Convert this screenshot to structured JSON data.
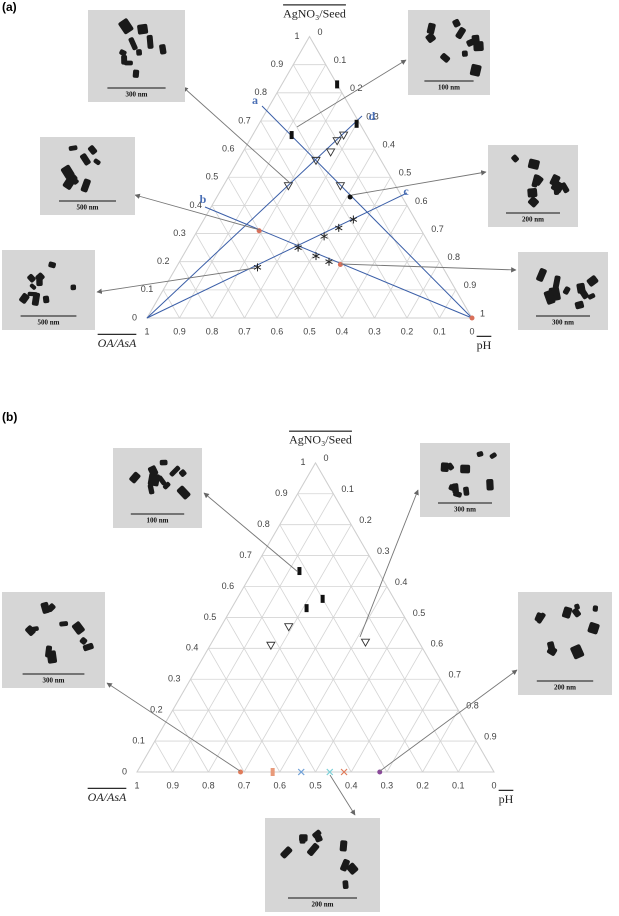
{
  "chart_data": [
    {
      "type": "ternary",
      "panel_label": "(a)",
      "components": [
        {
          "label": "AgNO₃/Seed",
          "ticks": [
            0,
            0.1,
            0.2,
            0.3,
            0.4,
            0.5,
            0.6,
            0.7,
            0.8,
            0.9,
            1
          ]
        },
        {
          "label": "OA/AsA",
          "ticks": [
            0,
            0.1,
            0.2,
            0.3,
            0.4,
            0.5,
            0.6,
            0.7,
            0.8,
            0.9,
            1
          ]
        },
        {
          "label": "pH",
          "ticks": [
            0,
            0.1,
            0.2,
            0.3,
            0.4,
            0.5,
            0.6,
            0.7,
            0.8,
            0.9,
            1
          ]
        }
      ],
      "series": [
        {
          "marker": "rect",
          "color": "#111111",
          "top": [
            0.83,
            0.65,
            0.69
          ],
          "right": [
            0.17,
            0.12,
            0.3
          ]
        },
        {
          "marker": "triangle-down",
          "color": "#333333",
          "top": [
            0.65,
            0.63,
            0.59,
            0.56,
            0.47,
            0.47
          ],
          "right": [
            0.28,
            0.27,
            0.27,
            0.24,
            0.2,
            0.36
          ]
        },
        {
          "marker": "star",
          "color": "#222222",
          "top": [
            0.18,
            0.25,
            0.29,
            0.32,
            0.35,
            0.22,
            0.2
          ],
          "right": [
            0.25,
            0.34,
            0.4,
            0.43,
            0.46,
            0.41,
            0.46
          ]
        },
        {
          "marker": "circle",
          "color": "#d9705a",
          "top": [
            0.31,
            0.19,
            0
          ],
          "right": [
            0.19,
            0.5,
            1
          ]
        },
        {
          "marker": "circle",
          "color": "#111111",
          "top": [
            0.43
          ],
          "right": [
            0.41
          ]
        }
      ],
      "line_labels": [
        "a",
        "b",
        "c",
        "d"
      ],
      "images": [
        {
          "scale": "300 nm"
        },
        {
          "scale": "100 nm"
        },
        {
          "scale": "500 nm"
        },
        {
          "scale": "200 nm"
        },
        {
          "scale": "500 nm"
        },
        {
          "scale": "300 nm"
        }
      ]
    },
    {
      "type": "ternary",
      "panel_label": "(b)",
      "components": [
        {
          "label": "AgNO₃/Seed",
          "ticks": [
            0,
            0.1,
            0.2,
            0.3,
            0.4,
            0.5,
            0.6,
            0.7,
            0.8,
            0.9,
            1
          ]
        },
        {
          "label": "OA/AsA",
          "ticks": [
            0,
            0.1,
            0.2,
            0.3,
            0.4,
            0.5,
            0.6,
            0.7,
            0.8,
            0.9,
            1
          ]
        },
        {
          "label": "pH",
          "ticks": [
            0,
            0.1,
            0.2,
            0.3,
            0.4,
            0.5,
            0.6,
            0.7,
            0.8,
            0.9
          ]
        }
      ],
      "series": [
        {
          "marker": "rect",
          "color": "#111111",
          "top": [
            0.65,
            0.53,
            0.56
          ],
          "right": [
            0.13,
            0.21,
            0.24
          ]
        },
        {
          "marker": "triangle-down",
          "color": "#333333",
          "top": [
            0.47,
            0.41,
            0.42
          ],
          "right": [
            0.19,
            0.17,
            0.43
          ]
        },
        {
          "marker": "circle",
          "color": "#e07b5a",
          "top": [
            0
          ],
          "right": [
            0.29
          ]
        },
        {
          "marker": "rect",
          "color": "#e89a7a",
          "top": [
            0
          ],
          "right": [
            0.38
          ]
        },
        {
          "marker": "x",
          "color": "#6fa0d8",
          "top": [
            0
          ],
          "right": [
            0.46
          ]
        },
        {
          "marker": "x",
          "color": "#7ad0d8",
          "top": [
            0
          ],
          "right": [
            0.54
          ]
        },
        {
          "marker": "x",
          "color": "#e07b5a",
          "top": [
            0
          ],
          "right": [
            0.58
          ]
        },
        {
          "marker": "circle",
          "color": "#8a4a9a",
          "top": [
            0
          ],
          "right": [
            0.68
          ]
        }
      ],
      "images": [
        {
          "scale": "100 nm"
        },
        {
          "scale": "300 nm"
        },
        {
          "scale": "300 nm"
        },
        {
          "scale": "200 nm"
        },
        {
          "scale": "200 nm"
        }
      ]
    }
  ]
}
